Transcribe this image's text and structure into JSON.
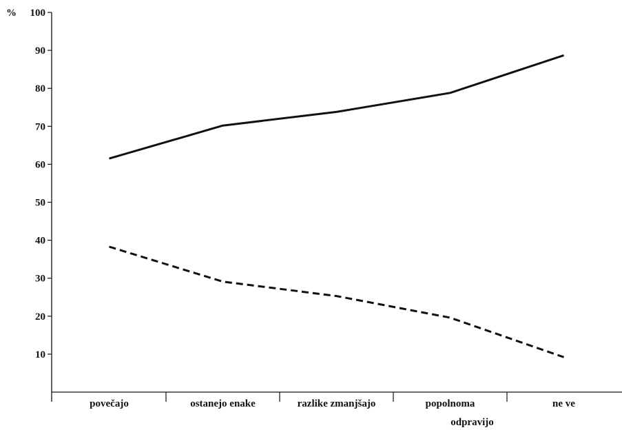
{
  "chart_data": {
    "type": "line",
    "title": "",
    "xlabel": "",
    "ylabel": "",
    "y_unit_label": "%",
    "categories": [
      "povečajo",
      "ostanejo enake",
      "razlike zmanjšajo",
      "popolnoma",
      "ne ve"
    ],
    "category_sublabels": [
      "",
      "",
      "",
      "odpravijo",
      ""
    ],
    "ylim": [
      0,
      100
    ],
    "yticks": [
      10,
      20,
      30,
      40,
      50,
      60,
      70,
      80,
      90,
      100
    ],
    "ytick_labels": [
      "10",
      "20",
      "30",
      "40",
      "50",
      "60",
      "70",
      "80",
      "90",
      "100"
    ],
    "grid": false,
    "legend": "none",
    "series": [
      {
        "style": "solid",
        "color": "#111111",
        "values": [
          61.5,
          70.2,
          73.8,
          78.8,
          88.7
        ]
      },
      {
        "style": "dashed",
        "color": "#111111",
        "values": [
          38.3,
          29.1,
          25.3,
          19.6,
          9.2
        ]
      }
    ]
  }
}
